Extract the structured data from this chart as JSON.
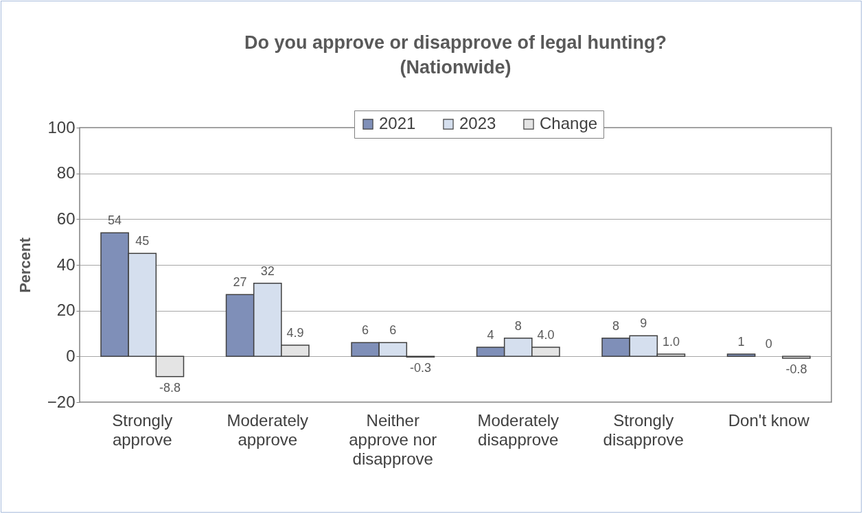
{
  "chart_data": {
    "type": "bar",
    "title": "Do you approve or disapprove of legal hunting? (Nationwide)",
    "ylabel": "Percent",
    "categories": [
      "Strongly approve",
      "Moderately approve",
      "Neither approve nor disapprove",
      "Moderately disapprove",
      "Strongly disapprove",
      "Don't know"
    ],
    "series": [
      {
        "name": "2021",
        "color": "#7f8fb8",
        "values": [
          54,
          27,
          6,
          4,
          8,
          1
        ],
        "value_labels": [
          "54",
          "27",
          "6",
          "4",
          "8",
          "1"
        ]
      },
      {
        "name": "2023",
        "color": "#d5dfee",
        "values": [
          45,
          32,
          6,
          8,
          9,
          0
        ],
        "value_labels": [
          "45",
          "32",
          "6",
          "8",
          "9",
          "0"
        ]
      },
      {
        "name": "Change",
        "color": "#e4e4e4",
        "values": [
          -8.8,
          4.9,
          -0.3,
          4.0,
          1.0,
          -0.8
        ],
        "value_labels": [
          "-8.8",
          "4.9",
          "-0.3",
          "4.0",
          "1.0",
          "-0.8"
        ]
      }
    ],
    "ylim": [
      -20,
      100
    ],
    "yticks": [
      -20,
      0,
      20,
      40,
      60,
      80,
      100
    ],
    "grid": "y",
    "legend": "top"
  }
}
